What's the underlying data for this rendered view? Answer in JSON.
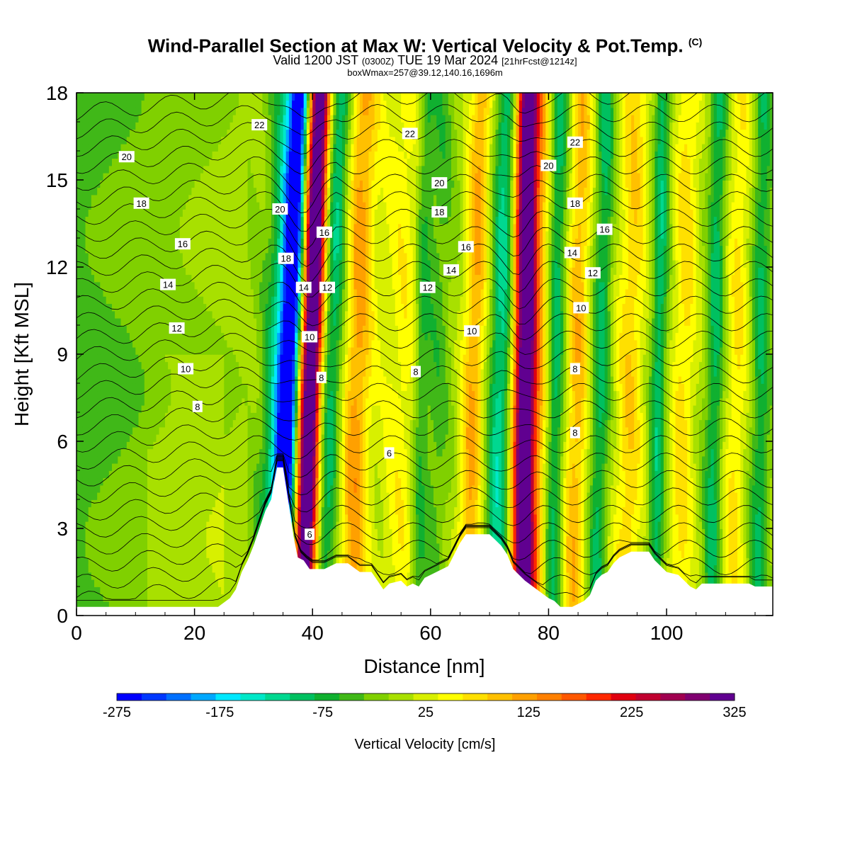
{
  "title": {
    "main": "Wind-Parallel Section at Max W: Vertical Velocity & Pot.Temp.",
    "copyright": "(C)",
    "valid_prefix": "Valid 1200 JST",
    "valid_utc": "(0300Z)",
    "valid_date": "TUE 19 Mar 2024",
    "forecast": "[21hrFcst@1214z]",
    "box": "boxWmax=257@39.12,140.16,1696m"
  },
  "colorbar": {
    "label": "Vertical Velocity [cm/s]",
    "tick_labels": [
      "-275",
      "-175",
      "-75",
      "25",
      "125",
      "225",
      "325"
    ],
    "bounds": [
      -275,
      325
    ],
    "step": 25,
    "colors": [
      "#0000ff",
      "#0038ff",
      "#0070ff",
      "#00a8ff",
      "#00e8ff",
      "#00e8c8",
      "#00d890",
      "#00c060",
      "#10b030",
      "#40b818",
      "#80d000",
      "#a8e000",
      "#d8f000",
      "#ffff00",
      "#ffe000",
      "#ffc000",
      "#ffa000",
      "#ff8000",
      "#ff5800",
      "#ff2800",
      "#e00010",
      "#c00030",
      "#a00050",
      "#800070",
      "#600090"
    ]
  },
  "chart_data": {
    "type": "heatmap",
    "title": "Wind-Parallel Section at Max W: Vertical Velocity & Pot.Temp.",
    "xlabel": "Distance [nm]",
    "ylabel": "Height [Kft MSL]",
    "xlim": [
      0,
      118
    ],
    "ylim": [
      0,
      18
    ],
    "x_ticks": [
      0,
      20,
      40,
      60,
      80,
      100
    ],
    "y_ticks": [
      0,
      3,
      6,
      9,
      12,
      15,
      18
    ],
    "grid": false,
    "units": "cm/s",
    "terrain": [
      [
        0,
        0.3
      ],
      [
        8,
        0.3
      ],
      [
        12,
        0.3
      ],
      [
        16,
        0.3
      ],
      [
        20,
        0.3
      ],
      [
        24,
        0.3
      ],
      [
        26,
        0.6
      ],
      [
        27,
        0.9
      ],
      [
        28,
        1.5
      ],
      [
        29,
        1.9
      ],
      [
        30,
        2.4
      ],
      [
        31,
        3.0
      ],
      [
        32,
        3.6
      ],
      [
        33,
        4.0
      ],
      [
        33.5,
        4.6
      ],
      [
        34,
        5.1
      ],
      [
        35,
        5.1
      ],
      [
        36,
        3.8
      ],
      [
        36.8,
        2.7
      ],
      [
        37.5,
        2.0
      ],
      [
        38.5,
        1.9
      ],
      [
        39.5,
        1.6
      ],
      [
        42,
        1.6
      ],
      [
        44,
        1.8
      ],
      [
        46,
        1.8
      ],
      [
        48,
        1.5
      ],
      [
        50,
        1.5
      ],
      [
        51,
        1.2
      ],
      [
        52,
        0.9
      ],
      [
        53,
        1.1
      ],
      [
        55,
        1.2
      ],
      [
        56,
        1.0
      ],
      [
        57,
        1.1
      ],
      [
        58,
        1.0
      ],
      [
        59,
        1.3
      ],
      [
        61,
        1.5
      ],
      [
        63,
        1.7
      ],
      [
        64,
        2.1
      ],
      [
        65,
        2.5
      ],
      [
        66,
        2.8
      ],
      [
        70,
        2.8
      ],
      [
        72,
        2.4
      ],
      [
        73,
        2.1
      ],
      [
        74,
        1.6
      ],
      [
        75,
        1.4
      ],
      [
        76,
        1.2
      ],
      [
        78,
        0.9
      ],
      [
        80,
        0.6
      ],
      [
        81,
        0.5
      ],
      [
        82,
        0.3
      ],
      [
        84,
        0.3
      ],
      [
        86,
        0.5
      ],
      [
        87,
        0.7
      ],
      [
        88,
        1.2
      ],
      [
        89,
        1.4
      ],
      [
        90,
        1.5
      ],
      [
        91,
        1.8
      ],
      [
        92,
        2.0
      ],
      [
        94,
        2.2
      ],
      [
        97,
        2.2
      ],
      [
        98,
        1.9
      ],
      [
        99,
        1.7
      ],
      [
        100,
        1.5
      ],
      [
        102,
        1.4
      ],
      [
        103,
        1.2
      ],
      [
        104,
        1.0
      ],
      [
        105,
        0.9
      ],
      [
        106,
        1.1
      ],
      [
        110,
        1.1
      ],
      [
        114,
        1.1
      ],
      [
        115,
        1.0
      ],
      [
        118,
        1.0
      ]
    ],
    "w_bands": [
      {
        "x_base": 34.5,
        "tilt": 0.2,
        "width": 1.8,
        "w": -260
      },
      {
        "x_base": 33.5,
        "tilt": 0.2,
        "width": 3.0,
        "w": -150
      },
      {
        "x_base": 38.5,
        "tilt": 0.15,
        "width": 2.0,
        "w": 320
      },
      {
        "x_base": 39.0,
        "tilt": 0.12,
        "width": 3.5,
        "w": 150
      },
      {
        "x_base": 41.0,
        "tilt": 0.18,
        "width": 2.4,
        "w": -190
      },
      {
        "x_base": 46.5,
        "tilt": 0.12,
        "width": 2.5,
        "w": 130
      },
      {
        "x_base": 55.0,
        "tilt": 0.05,
        "width": 4.0,
        "w": 60
      },
      {
        "x_base": 57.5,
        "tilt": 0.1,
        "width": 1.3,
        "w": -70
      },
      {
        "x_base": 60.0,
        "tilt": 0.1,
        "width": 2.2,
        "w": -50
      },
      {
        "x_base": 66.0,
        "tilt": 0.15,
        "width": 2.0,
        "w": 120
      },
      {
        "x_base": 71.0,
        "tilt": 0.12,
        "width": 2.0,
        "w": -130
      },
      {
        "x_base": 75.5,
        "tilt": 0.05,
        "width": 1.8,
        "w": 280
      },
      {
        "x_base": 76.5,
        "tilt": 0.05,
        "width": 3.2,
        "w": 140
      },
      {
        "x_base": 80.5,
        "tilt": 0.08,
        "width": 1.5,
        "w": -110
      },
      {
        "x_base": 84.0,
        "tilt": 0.1,
        "width": 2.0,
        "w": 110
      },
      {
        "x_base": 88.0,
        "tilt": 0.1,
        "width": 1.5,
        "w": -90
      },
      {
        "x_base": 93.0,
        "tilt": 0.1,
        "width": 2.5,
        "w": 90
      },
      {
        "x_base": 98.0,
        "tilt": 0.08,
        "width": 1.3,
        "w": -100
      },
      {
        "x_base": 102.0,
        "tilt": 0.1,
        "width": 2.2,
        "w": 80
      },
      {
        "x_base": 107.5,
        "tilt": 0.08,
        "width": 1.4,
        "w": -90
      },
      {
        "x_base": 111.0,
        "tilt": 0.1,
        "width": 2.0,
        "w": 70
      },
      {
        "x_base": 115.5,
        "tilt": 0.05,
        "width": 1.5,
        "w": -80
      }
    ],
    "theta_labels": [
      {
        "text": "22",
        "x": 31.0,
        "y": 16.9
      },
      {
        "text": "20",
        "x": 8.5,
        "y": 15.8
      },
      {
        "text": "18",
        "x": 11.0,
        "y": 14.2
      },
      {
        "text": "16",
        "x": 18.0,
        "y": 12.8
      },
      {
        "text": "14",
        "x": 15.5,
        "y": 11.4
      },
      {
        "text": "12",
        "x": 17.0,
        "y": 9.9
      },
      {
        "text": "10",
        "x": 18.5,
        "y": 8.5
      },
      {
        "text": "8",
        "x": 20.5,
        "y": 7.2
      },
      {
        "text": "20",
        "x": 34.5,
        "y": 14.0
      },
      {
        "text": "18",
        "x": 35.5,
        "y": 12.3
      },
      {
        "text": "16",
        "x": 42.0,
        "y": 13.2
      },
      {
        "text": "14",
        "x": 38.5,
        "y": 11.3
      },
      {
        "text": "12",
        "x": 42.5,
        "y": 11.3
      },
      {
        "text": "10",
        "x": 39.5,
        "y": 9.6
      },
      {
        "text": "8",
        "x": 41.5,
        "y": 8.2
      },
      {
        "text": "6",
        "x": 39.5,
        "y": 2.8
      },
      {
        "text": "22",
        "x": 56.5,
        "y": 16.6
      },
      {
        "text": "20",
        "x": 61.5,
        "y": 14.9
      },
      {
        "text": "18",
        "x": 61.5,
        "y": 13.9
      },
      {
        "text": "16",
        "x": 66.0,
        "y": 12.7
      },
      {
        "text": "14",
        "x": 63.5,
        "y": 11.9
      },
      {
        "text": "12",
        "x": 59.5,
        "y": 11.3
      },
      {
        "text": "10",
        "x": 67.0,
        "y": 9.8
      },
      {
        "text": "8",
        "x": 57.5,
        "y": 8.4
      },
      {
        "text": "6",
        "x": 53.0,
        "y": 5.6
      },
      {
        "text": "22",
        "x": 84.5,
        "y": 16.3
      },
      {
        "text": "20",
        "x": 80.0,
        "y": 15.5
      },
      {
        "text": "18",
        "x": 84.5,
        "y": 14.2
      },
      {
        "text": "16",
        "x": 89.5,
        "y": 13.3
      },
      {
        "text": "14",
        "x": 84.0,
        "y": 12.5
      },
      {
        "text": "12",
        "x": 87.5,
        "y": 11.8
      },
      {
        "text": "10",
        "x": 85.5,
        "y": 10.6
      },
      {
        "text": "8",
        "x": 84.5,
        "y": 8.5
      },
      {
        "text": "8",
        "x": 84.5,
        "y": 6.3
      }
    ]
  }
}
